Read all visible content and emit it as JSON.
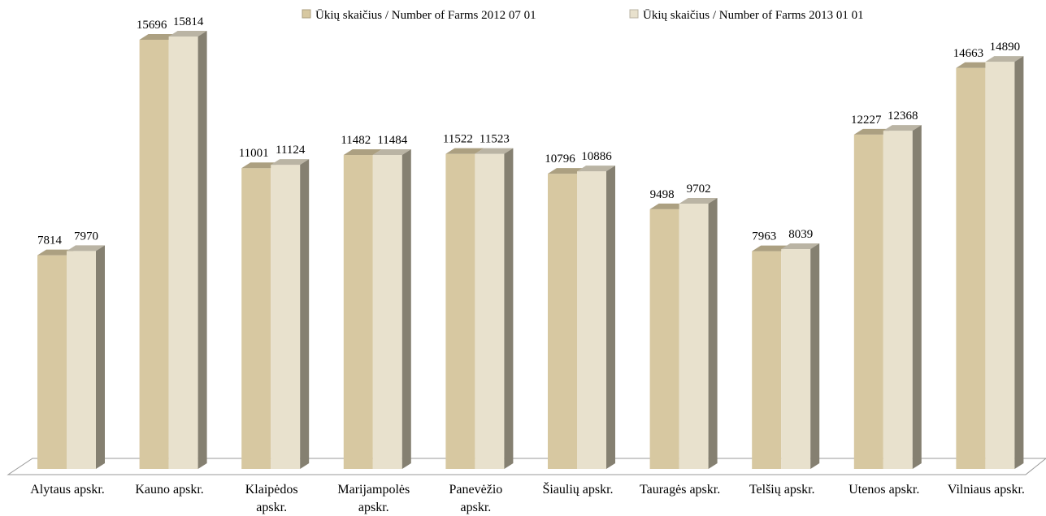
{
  "chart_data": {
    "type": "bar3d",
    "categories": [
      "Alytaus apskr.",
      "Kauno apskr.",
      "Klaipėdos apskr.",
      "Marijampolės apskr.",
      "Panevėžio apskr.",
      "Šiaulių apskr.",
      "Tauragės apskr.",
      "Telšių apskr.",
      "Utenos apskr.",
      "Vilniaus apskr."
    ],
    "series": [
      {
        "name": "Ūkių skaičius / Number of Farms 2012 07 01",
        "color": "#d7c8a1",
        "values": [
          7814,
          15696,
          11001,
          11482,
          11522,
          10796,
          9498,
          7963,
          12227,
          14663
        ]
      },
      {
        "name": "Ūkių skaičius / Number of Farms 2013 01 01",
        "color": "#e8e1cd",
        "values": [
          7970,
          15814,
          11124,
          11484,
          11523,
          10886,
          9702,
          8039,
          12368,
          14890
        ]
      }
    ],
    "legend": "top"
  }
}
